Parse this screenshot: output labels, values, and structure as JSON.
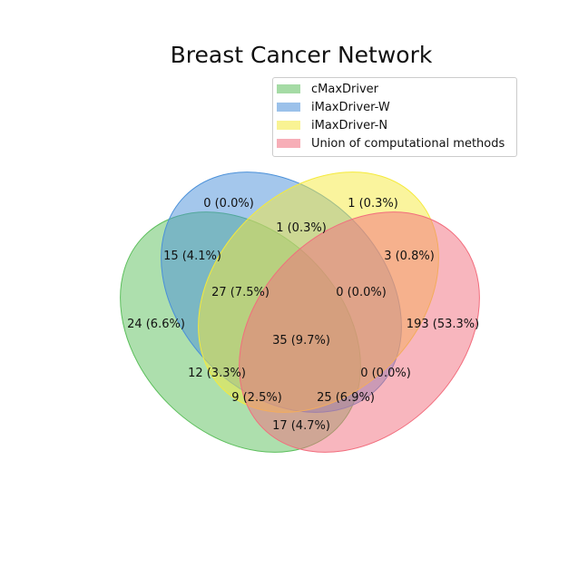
{
  "title": "Breast Cancer Network",
  "sets": [
    {
      "name": "cMaxDriver",
      "color": "#5cbf5c"
    },
    {
      "name": "iMaxDriver-W",
      "color": "#4a90d9"
    },
    {
      "name": "iMaxDriver-N",
      "color": "#f5ea3b"
    },
    {
      "name": "Union of computational methods",
      "color": "#f26d7d"
    }
  ],
  "regions": [
    {
      "label": "0 (0.0%)",
      "count": 0
    },
    {
      "label": "1 (0.3%)",
      "count": 1
    },
    {
      "label": "1 (0.3%)",
      "count": 1
    },
    {
      "label": "15 (4.1%)",
      "count": 15
    },
    {
      "label": "3 (0.8%)",
      "count": 3
    },
    {
      "label": "27 (7.5%)",
      "count": 27
    },
    {
      "label": "0 (0.0%)",
      "count": 0
    },
    {
      "label": "24 (6.6%)",
      "count": 24
    },
    {
      "label": "193 (53.3%)",
      "count": 193
    },
    {
      "label": "35 (9.7%)",
      "count": 35
    },
    {
      "label": "12 (3.3%)",
      "count": 12
    },
    {
      "label": "0 (0.0%)",
      "count": 0
    },
    {
      "label": "9 (2.5%)",
      "count": 9
    },
    {
      "label": "25 (6.9%)",
      "count": 25
    },
    {
      "label": "17 (4.7%)",
      "count": 17
    }
  ]
}
